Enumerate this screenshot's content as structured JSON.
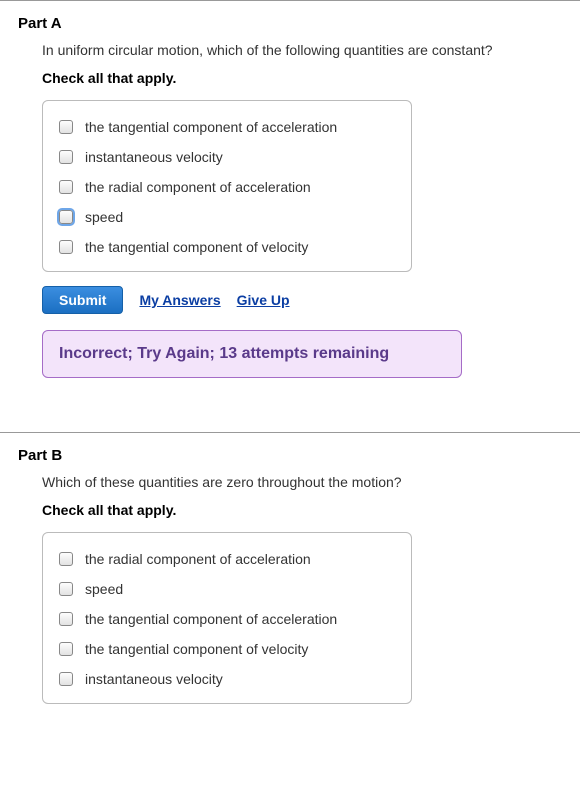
{
  "partA": {
    "title": "Part A",
    "question": "In uniform circular motion, which of the following quantities are constant?",
    "instruction": "Check all that apply.",
    "options": [
      {
        "label": "the tangential component of acceleration",
        "checked": false,
        "focused": false
      },
      {
        "label": "instantaneous velocity",
        "checked": false,
        "focused": false
      },
      {
        "label": "the radial component of acceleration",
        "checked": false,
        "focused": false
      },
      {
        "label": "speed",
        "checked": false,
        "focused": true
      },
      {
        "label": "the tangential component of velocity",
        "checked": false,
        "focused": false
      }
    ],
    "submit_label": "Submit",
    "my_answers_label": "My Answers",
    "give_up_label": "Give Up",
    "feedback": "Incorrect; Try Again; 13 attempts remaining",
    "feedback_colors": {
      "bg": "#f3e4fa",
      "border": "#a56cc7",
      "text": "#5a3a8a"
    }
  },
  "partB": {
    "title": "Part B",
    "question": "Which of these quantities are zero throughout the motion?",
    "instruction": "Check all that apply.",
    "options": [
      {
        "label": "the radial component of acceleration",
        "checked": false,
        "focused": false
      },
      {
        "label": "speed",
        "checked": false,
        "focused": false
      },
      {
        "label": "the tangential component of acceleration",
        "checked": false,
        "focused": false
      },
      {
        "label": "the tangential component of velocity",
        "checked": false,
        "focused": false
      },
      {
        "label": "instantaneous velocity",
        "checked": false,
        "focused": false
      }
    ]
  }
}
